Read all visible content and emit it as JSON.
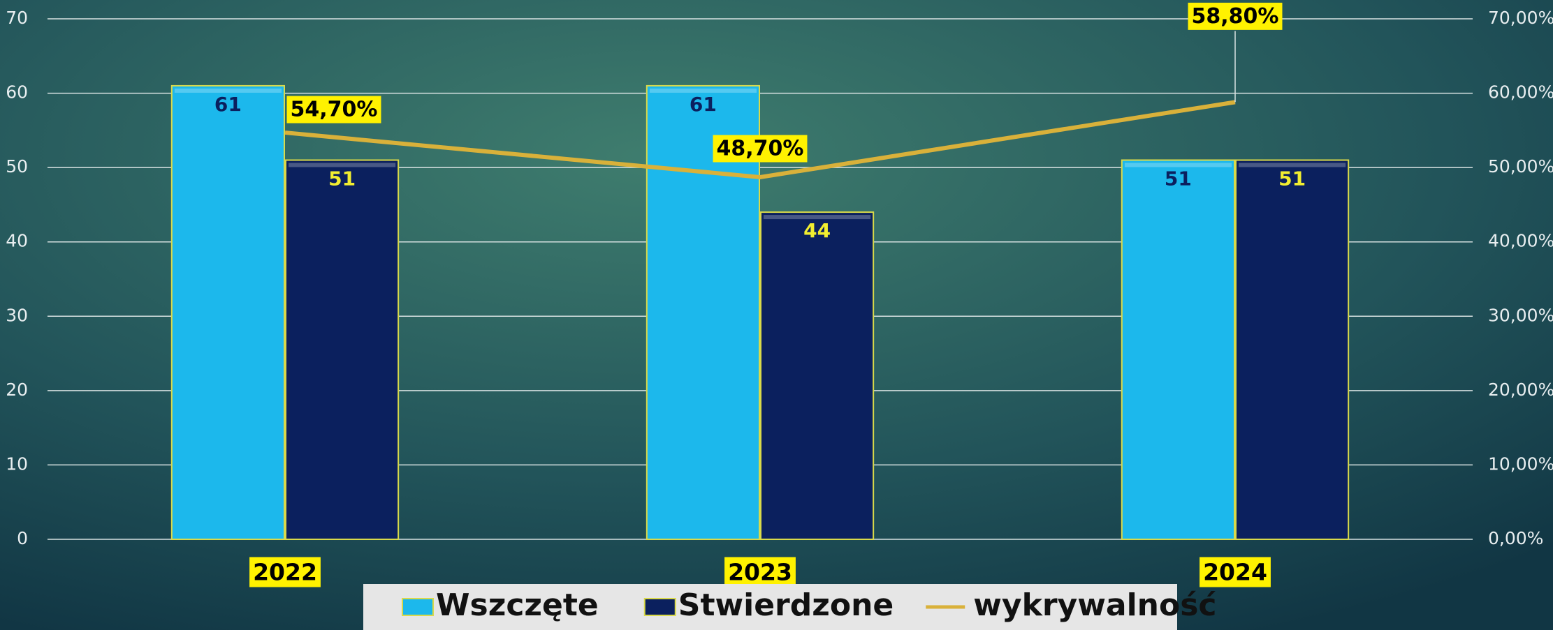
{
  "chart_data": {
    "type": "bar",
    "categories": [
      "2022",
      "2023",
      "2024"
    ],
    "series": [
      {
        "name": "Wszczęte",
        "color": "#1cb8ec",
        "values": [
          61,
          61,
          51
        ]
      },
      {
        "name": "Stwierdzone",
        "color": "#0b205e",
        "values": [
          51,
          44,
          51
        ]
      },
      {
        "name": "wykrywalność",
        "type": "line",
        "axis": "y2",
        "color": "#d9b13a",
        "values": [
          54.7,
          48.7,
          58.8
        ],
        "value_labels": [
          "54,70%",
          "48,70%",
          "58,80%"
        ]
      }
    ],
    "ylim": [
      0,
      70
    ],
    "yticks": [
      0,
      10,
      20,
      30,
      40,
      50,
      60,
      70
    ],
    "y2lim": [
      0,
      70
    ],
    "y2ticks": [
      {
        "value": 0,
        "label": "0,00%"
      },
      {
        "value": 10,
        "label": "10,00%"
      },
      {
        "value": 20,
        "label": "20,00%"
      },
      {
        "value": 30,
        "label": "30,00%"
      },
      {
        "value": 40,
        "label": "40,00%"
      },
      {
        "value": 50,
        "label": "50,00%"
      },
      {
        "value": 60,
        "label": "60,00%"
      },
      {
        "value": 70,
        "label": "70,00%"
      }
    ],
    "grid": true,
    "legend": "bottom"
  }
}
